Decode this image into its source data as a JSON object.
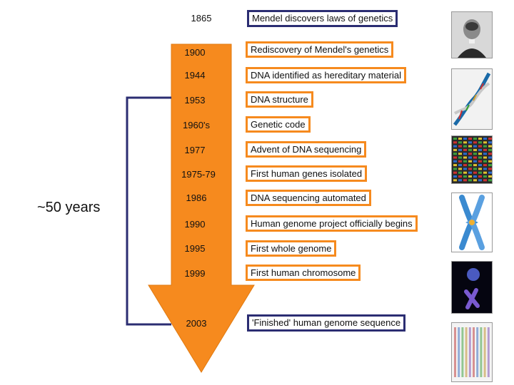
{
  "bracket_label": "~50 years",
  "timeline": [
    {
      "year": "1865",
      "event": "Mendel discovers laws of genetics"
    },
    {
      "year": "1900",
      "event": "Rediscovery of Mendel's genetics"
    },
    {
      "year": "1944",
      "event": "DNA identified as hereditary material"
    },
    {
      "year": "1953",
      "event": "DNA structure"
    },
    {
      "year": "1960's",
      "event": "Genetic code"
    },
    {
      "year": "1977",
      "event": "Advent of DNA sequencing"
    },
    {
      "year": "1975-79",
      "event": "First human genes isolated"
    },
    {
      "year": "1986",
      "event": "DNA sequencing automated"
    },
    {
      "year": "1990",
      "event": "Human genome project officially begins"
    },
    {
      "year": "1995",
      "event": "First whole genome"
    },
    {
      "year": "1999",
      "event": "First human chromosome"
    },
    {
      "year": "2003",
      "event": "'Finished' human genome sequence"
    }
  ],
  "images": [
    "mendel-portrait",
    "dna-helix",
    "sequencing-gel",
    "chromosome-diagram",
    "chromosome-micrograph",
    "sequencing-traces"
  ],
  "colors": {
    "arrow": "#f68a1e",
    "bracket": "#2b2d72",
    "box_orange": "#f68a1e",
    "box_navy": "#2b2d72"
  }
}
